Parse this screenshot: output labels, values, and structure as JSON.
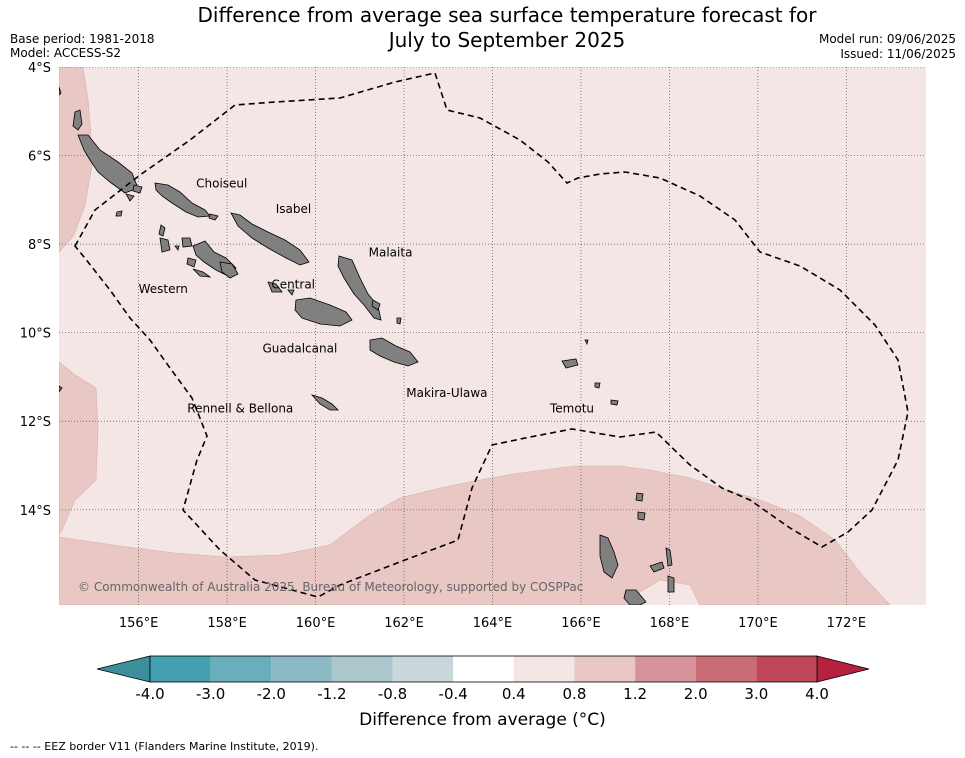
{
  "title_line1": "Difference from average sea surface temperature forecast for",
  "title_line2": "July to September 2025",
  "base_period": "Base period: 1981-2018",
  "model": "Model: ACCESS-S2",
  "model_run": "Model run: 09/06/2025",
  "issued": "Issued: 11/06/2025",
  "copyright": "© Commonwealth of Australia 2025, Bureau of Meteorology, supported by COSPPac",
  "eez_legend": "--  --  -- EEZ border V11 (Flanders Marine Institute, 2019).",
  "map": {
    "lon_range": [
      154.2,
      173.8
    ],
    "lat_range": [
      -16.15,
      -4.0
    ],
    "lat_ticks": [
      {
        "value": -4,
        "label": "4°S"
      },
      {
        "value": -6,
        "label": "6°S"
      },
      {
        "value": -8,
        "label": "8°S"
      },
      {
        "value": -10,
        "label": "10°S"
      },
      {
        "value": -12,
        "label": "12°S"
      },
      {
        "value": -14,
        "label": "14°S"
      }
    ],
    "lon_ticks": [
      {
        "value": 156,
        "label": "156°E"
      },
      {
        "value": 158,
        "label": "158°E"
      },
      {
        "value": 160,
        "label": "160°E"
      },
      {
        "value": 162,
        "label": "162°E"
      },
      {
        "value": 164,
        "label": "164°E"
      },
      {
        "value": 166,
        "label": "166°E"
      },
      {
        "value": 168,
        "label": "168°E"
      },
      {
        "value": 170,
        "label": "170°E"
      },
      {
        "value": 172,
        "label": "172°E"
      }
    ],
    "places": [
      {
        "name": "Choiseul",
        "lon": 157.3,
        "lat": -6.72
      },
      {
        "name": "Isabel",
        "lon": 159.1,
        "lat": -7.3
      },
      {
        "name": "Malaita",
        "lon": 161.2,
        "lat": -8.28
      },
      {
        "name": "Western",
        "lon": 156.0,
        "lat": -9.1
      },
      {
        "name": "Central",
        "lon": 159.0,
        "lat": -9.0
      },
      {
        "name": "Guadalcanal",
        "lon": 158.8,
        "lat": -10.45
      },
      {
        "name": "Makira-Ulawa",
        "lon": 162.05,
        "lat": -11.45
      },
      {
        "name": "Rennell & Bellona",
        "lon": 157.1,
        "lat": -11.8
      },
      {
        "name": "Temotu",
        "lon": 165.3,
        "lat": -11.8
      }
    ],
    "colors": {
      "anomaly_0.4_0.8": "#f4e6e5",
      "anomaly_0.8_1.2": "#e8c7c4",
      "land": "#808080"
    }
  },
  "colorbar": {
    "label": "Difference from average (°C)",
    "ticks": [
      "-4.0",
      "-3.0",
      "-2.0",
      "-1.2",
      "-0.8",
      "-0.4",
      "0.4",
      "0.8",
      "1.2",
      "2.0",
      "3.0",
      "4.0"
    ],
    "colors": [
      "#45a0b1",
      "#6aaebc",
      "#8bbac4",
      "#a9c7cc",
      "#c8d7da",
      "#ffffff",
      "#f4e6e5",
      "#e8c7c4",
      "#d6939a",
      "#c96c76",
      "#bf4858"
    ],
    "extend_low_color": "#3d8f9c",
    "extend_high_color": "#b5213f"
  }
}
